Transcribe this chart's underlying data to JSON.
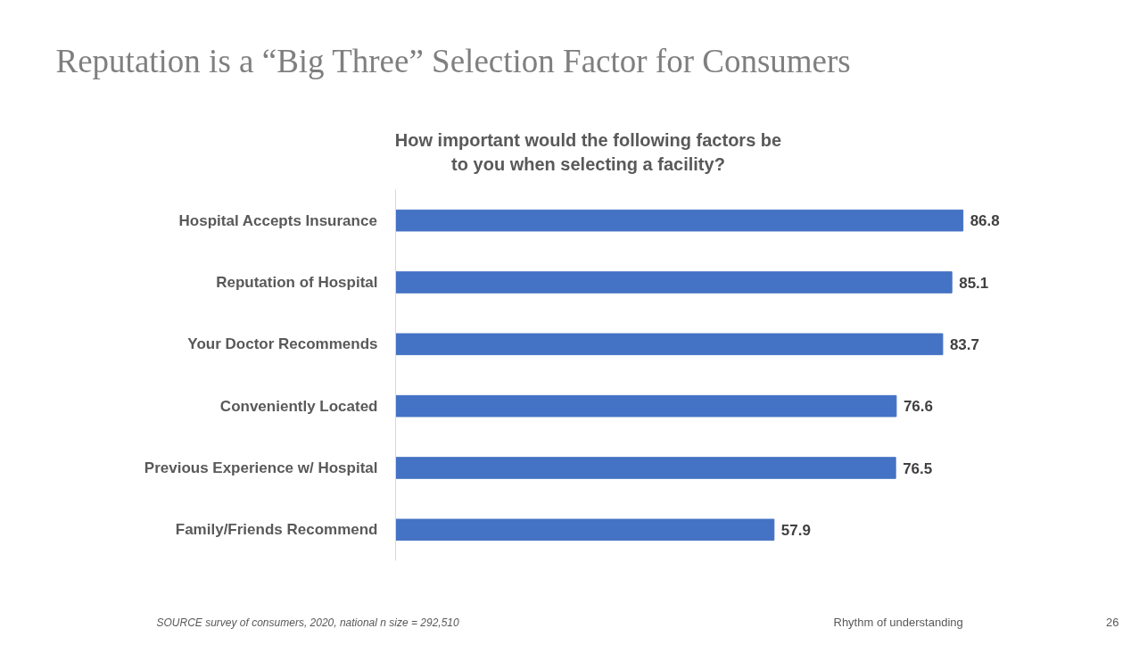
{
  "chart_data": {
    "type": "bar",
    "orientation": "horizontal",
    "title": "Reputation is a “Big Three” Selection Factor for Consumers",
    "subtitle": "How important would the following factors be\nto you when selecting a facility?",
    "categories": [
      "Hospital Accepts Insurance",
      "Reputation of Hospital",
      "Your Doctor Recommends",
      "Conveniently Located",
      "Previous Experience w/ Hospital",
      "Family/Friends Recommend"
    ],
    "values": [
      86.8,
      85.1,
      83.7,
      76.6,
      76.5,
      57.9
    ],
    "color": "#4472c4",
    "data_labels": true,
    "grid": false,
    "tick_labels": "y",
    "annotations": [
      "SOURCE survey of consumers, 2020, national n size = 292,510",
      "Rhythm of understanding",
      "26"
    ]
  }
}
